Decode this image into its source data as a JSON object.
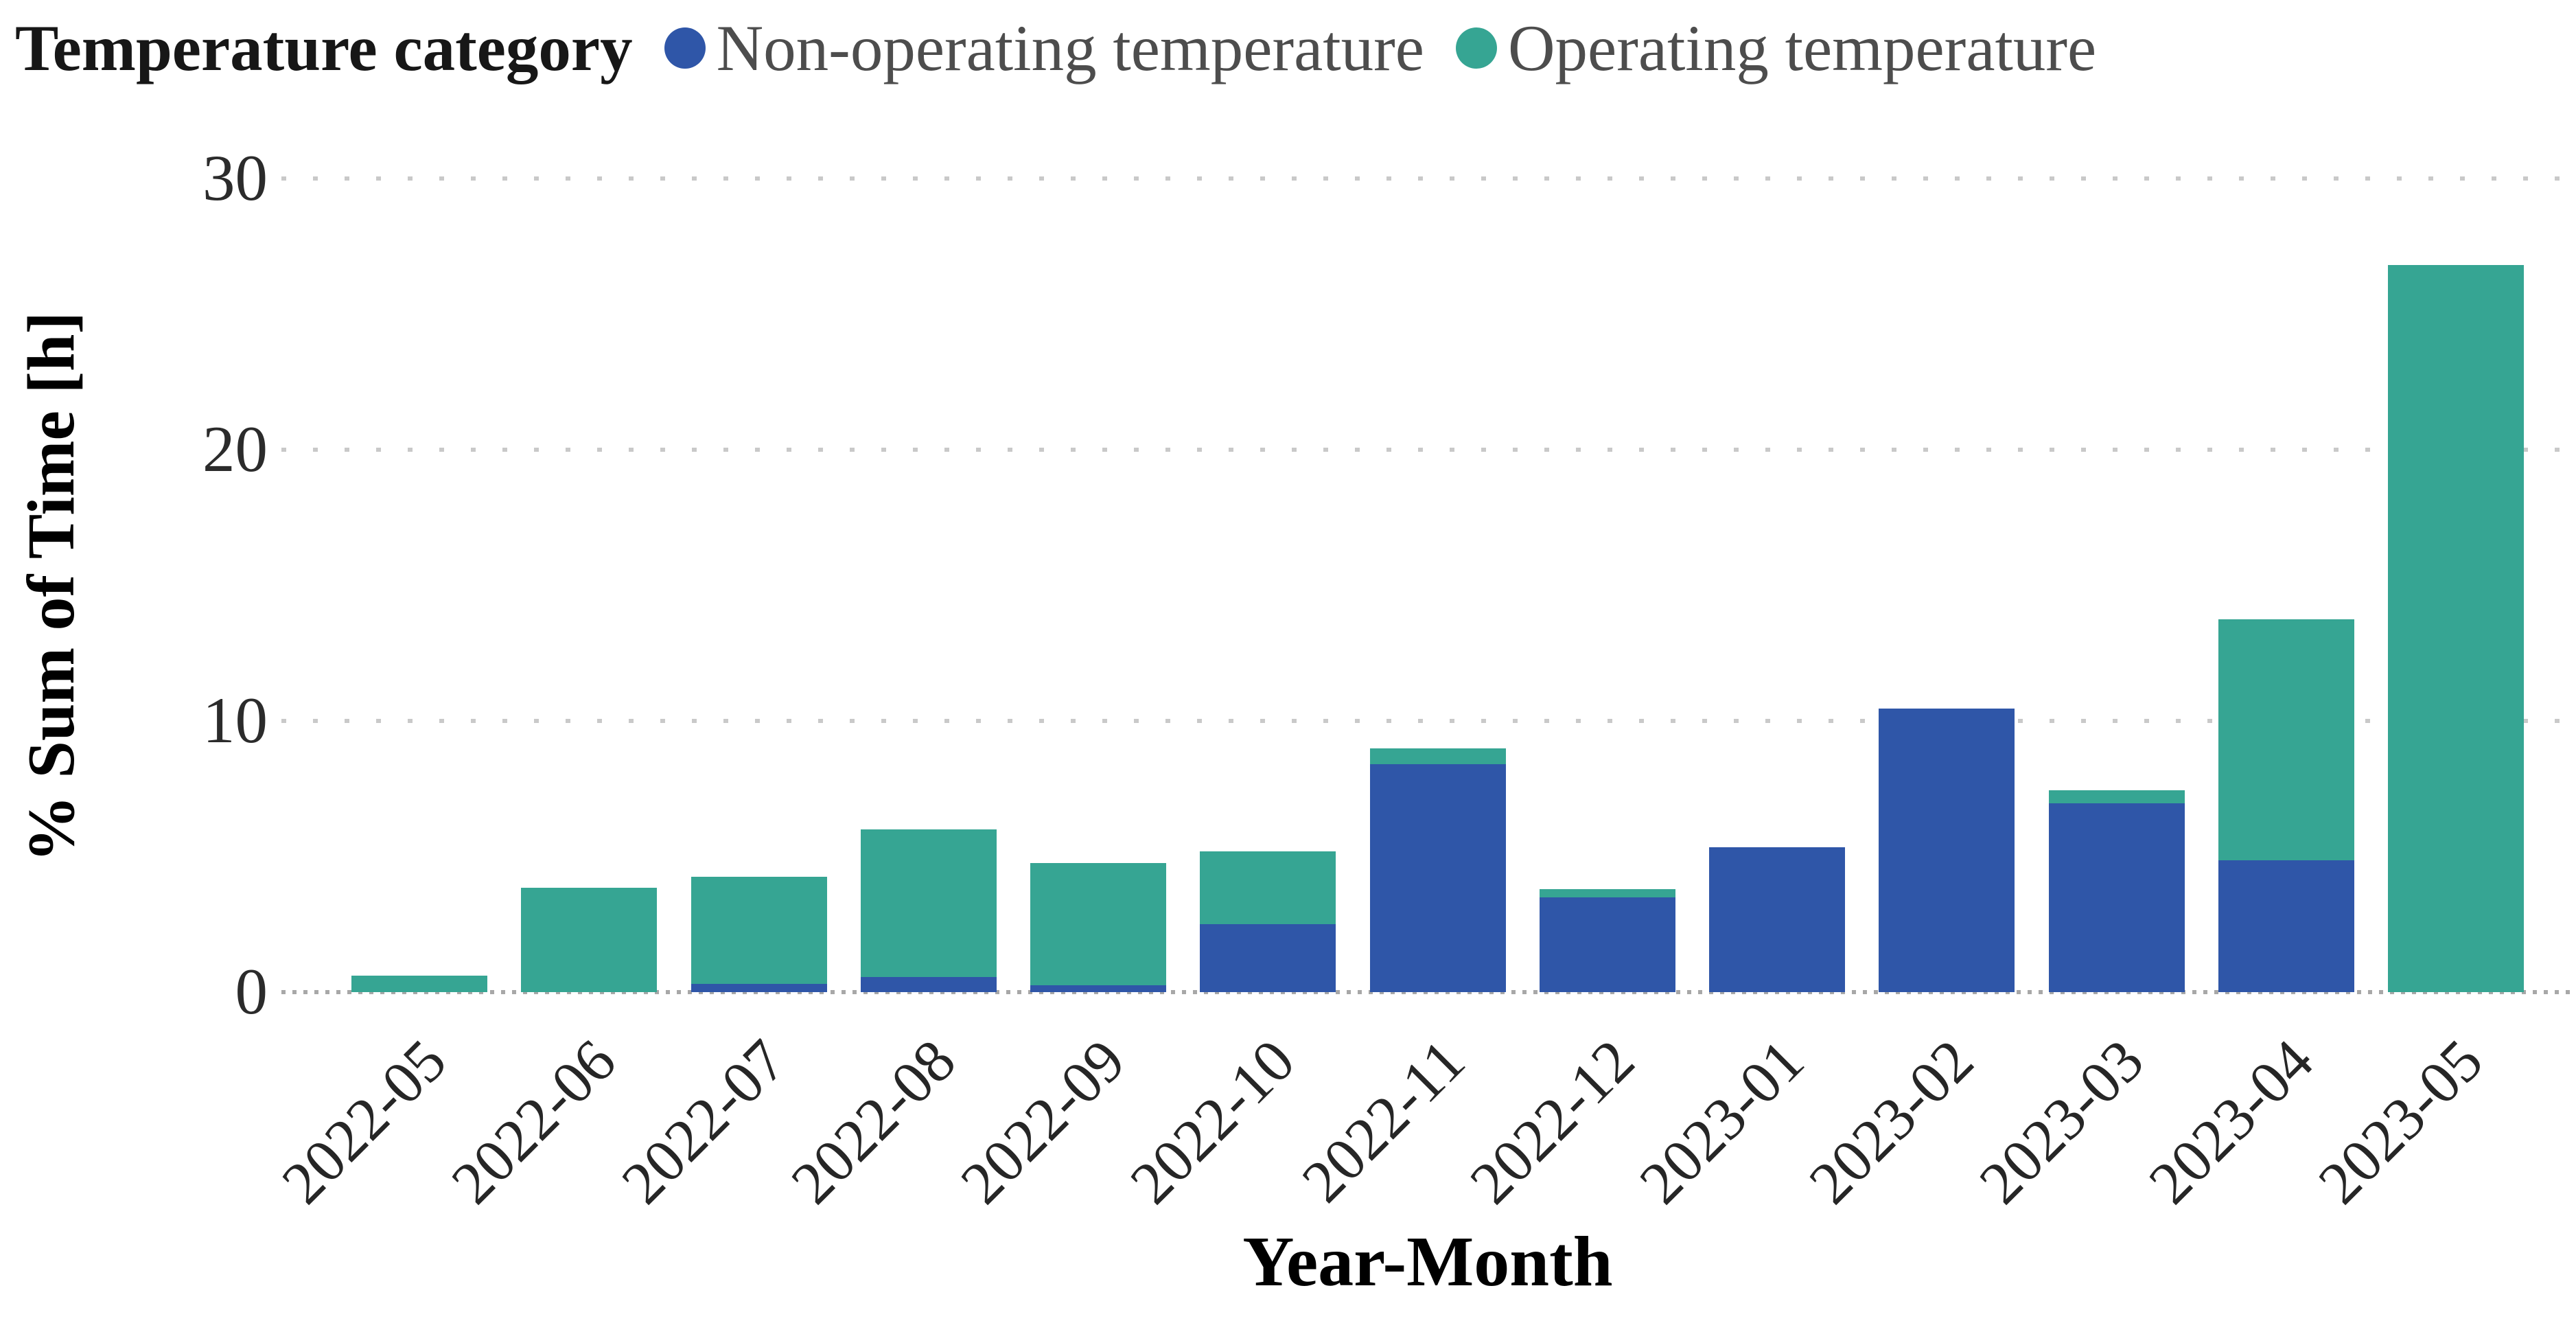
{
  "legend": {
    "title": "Temperature category",
    "items": [
      {
        "label": "Non-operating temperature",
        "color": "#2f56a8"
      },
      {
        "label": "Operating temperature",
        "color": "#36a593"
      }
    ]
  },
  "axes": {
    "x_title": "Year-Month",
    "y_title": "% Sum of Time [h]",
    "y_ticks": [
      "0",
      "10",
      "20",
      "30"
    ]
  },
  "chart_data": {
    "type": "bar",
    "stacked": true,
    "title": "",
    "xlabel": "Year-Month",
    "ylabel": "% Sum of Time [h]",
    "ylim": [
      0,
      30
    ],
    "yticks": [
      0,
      10,
      20,
      30
    ],
    "grid": true,
    "gridstyle": "dotted",
    "legend_position": "top",
    "categories": [
      "2022-05",
      "2022-06",
      "2022-07",
      "2022-08",
      "2022-09",
      "2022-10",
      "2022-11",
      "2022-12",
      "2023-01",
      "2023-02",
      "2023-03",
      "2023-04",
      "2023-05"
    ],
    "series": [
      {
        "name": "Non-operating temperature",
        "color": "#2f56a8",
        "values": [
          0,
          0,
          0.3,
          0.55,
          0.25,
          2.5,
          8.4,
          3.5,
          5.35,
          10.45,
          6.95,
          4.85,
          0
        ]
      },
      {
        "name": "Operating temperature",
        "color": "#36a593",
        "values": [
          0.6,
          3.85,
          3.95,
          5.45,
          4.5,
          2.7,
          0.6,
          0.3,
          0,
          0,
          0.5,
          8.9,
          26.8
        ]
      }
    ],
    "totals": [
      0.6,
      3.85,
      4.25,
      6.0,
      4.75,
      5.2,
      9.0,
      3.8,
      5.35,
      10.45,
      7.45,
      13.75,
      26.8
    ]
  }
}
